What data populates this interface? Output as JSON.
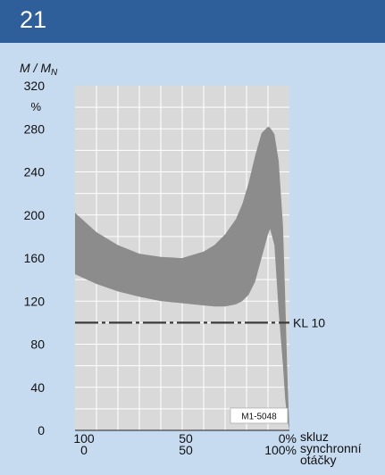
{
  "header": {
    "number": "21"
  },
  "chart_data": {
    "type": "area",
    "ylabel_main": "M / M",
    "ylabel_sub": "N",
    "y_unit": "%",
    "ylim": [
      0,
      320
    ],
    "y_ticks": [
      "320",
      "280",
      "240",
      "200",
      "160",
      "120",
      "80",
      "40",
      "0"
    ],
    "x_ticks_slip": [
      "100",
      "50",
      "0%"
    ],
    "x_ticks_speed": [
      "0",
      "50",
      "100%"
    ],
    "x_label_slip": "skluz",
    "x_label_speed": [
      "synchronní",
      "otáčky"
    ],
    "grid": true,
    "band": {
      "speed": [
        0,
        10,
        20,
        30,
        40,
        50,
        60,
        65,
        70,
        75,
        78,
        81,
        84,
        87,
        90,
        91,
        93,
        95,
        97,
        98,
        99,
        100
      ],
      "upper": [
        202,
        184,
        172,
        164,
        161,
        160,
        166,
        172,
        182,
        196,
        210,
        230,
        255,
        276,
        282,
        281,
        275,
        250,
        190,
        125,
        55,
        0
      ],
      "lower": [
        145,
        136,
        129,
        124,
        120,
        118,
        116,
        115,
        115,
        117,
        120,
        126,
        138,
        160,
        182,
        187,
        172,
        110,
        60,
        30,
        10,
        0
      ]
    },
    "reference_line": {
      "value": 100,
      "label": "KL 10"
    },
    "code_label": "M1-5048"
  }
}
